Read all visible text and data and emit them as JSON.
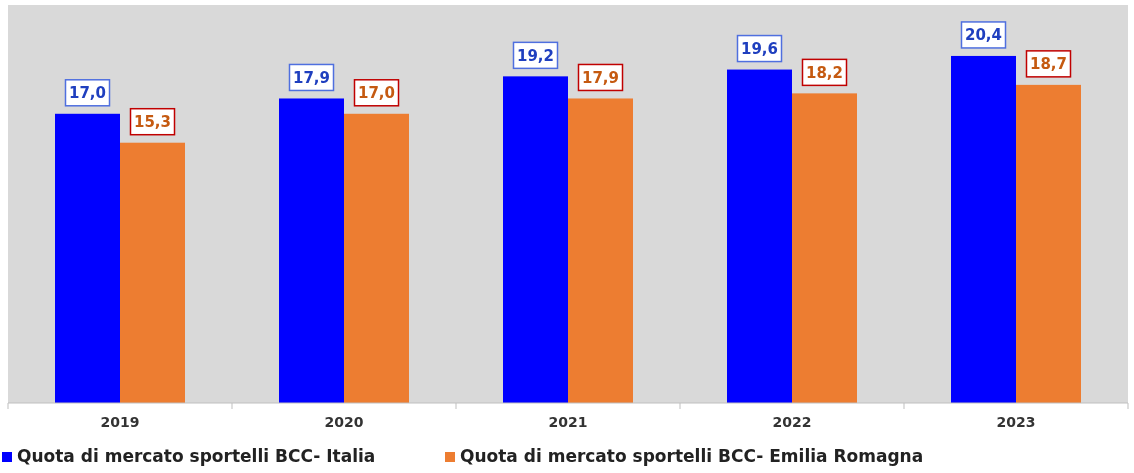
{
  "chart_data": {
    "type": "bar",
    "categories": [
      "2019",
      "2020",
      "2021",
      "2022",
      "2023"
    ],
    "series": [
      {
        "name": "Quota di mercato sportelli BCC- Italia",
        "color": "#0000ff",
        "values": [
          17.0,
          17.9,
          19.2,
          19.6,
          20.4
        ],
        "value_labels": [
          "17,0",
          "17,9",
          "19,2",
          "19,6",
          "20,4"
        ]
      },
      {
        "name": "Quota di mercato sportelli BCC- Emilia Romagna",
        "color": "#ed7d31",
        "values": [
          15.3,
          17.0,
          17.9,
          18.2,
          18.7
        ],
        "value_labels": [
          "15,3",
          "17,0",
          "17,9",
          "18,2",
          "18,7"
        ]
      }
    ],
    "legend": "bottom"
  }
}
